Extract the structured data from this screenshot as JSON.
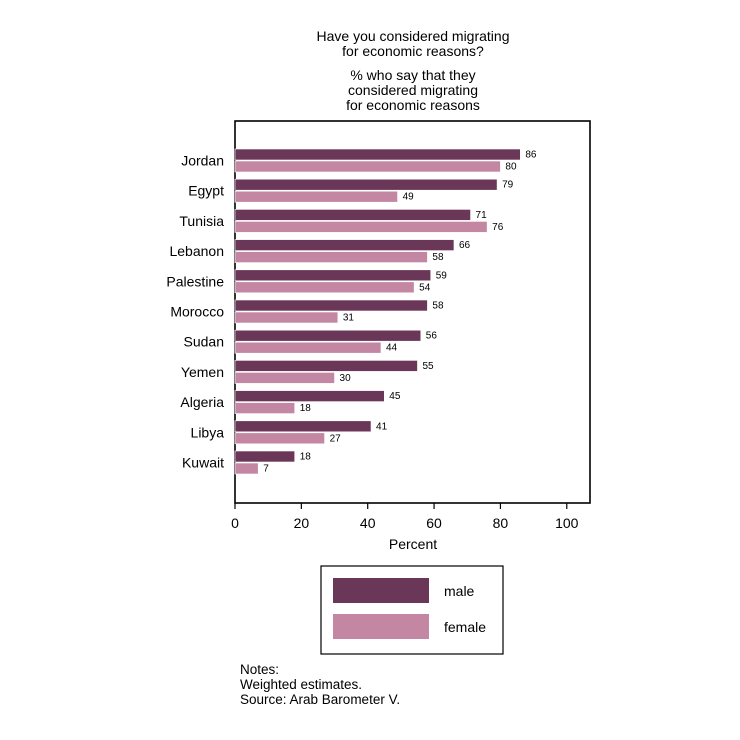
{
  "chart_data": {
    "type": "bar",
    "orientation": "horizontal",
    "title": "Have you considered migrating for economic reasons?",
    "subtitle": "% who say that they considered migrating for economic reasons",
    "title_lines": [
      "Have you considered migrating",
      "for economic reasons?"
    ],
    "subtitle_lines": [
      "% who say that they",
      "considered migrating",
      "for economic reasons"
    ],
    "xlabel": "Percent",
    "ylabel": "",
    "xlim": [
      0,
      107
    ],
    "xticks": [
      0,
      20,
      40,
      60,
      80,
      100
    ],
    "grid": false,
    "legend_position": "bottom",
    "categories": [
      "Jordan",
      "Egypt",
      "Tunisia",
      "Lebanon",
      "Palestine",
      "Morocco",
      "Sudan",
      "Yemen",
      "Algeria",
      "Libya",
      "Kuwait"
    ],
    "series": [
      {
        "name": "male",
        "color": "#6b3758",
        "values": [
          86,
          79,
          71,
          66,
          59,
          58,
          56,
          55,
          45,
          41,
          18
        ]
      },
      {
        "name": "female",
        "color": "#c387a4",
        "values": [
          80,
          49,
          76,
          58,
          54,
          31,
          44,
          30,
          18,
          27,
          7
        ]
      }
    ]
  },
  "notes": {
    "heading": "Notes:",
    "line1": "Weighted estimates.",
    "line2": "Source: Arab Barometer V."
  }
}
